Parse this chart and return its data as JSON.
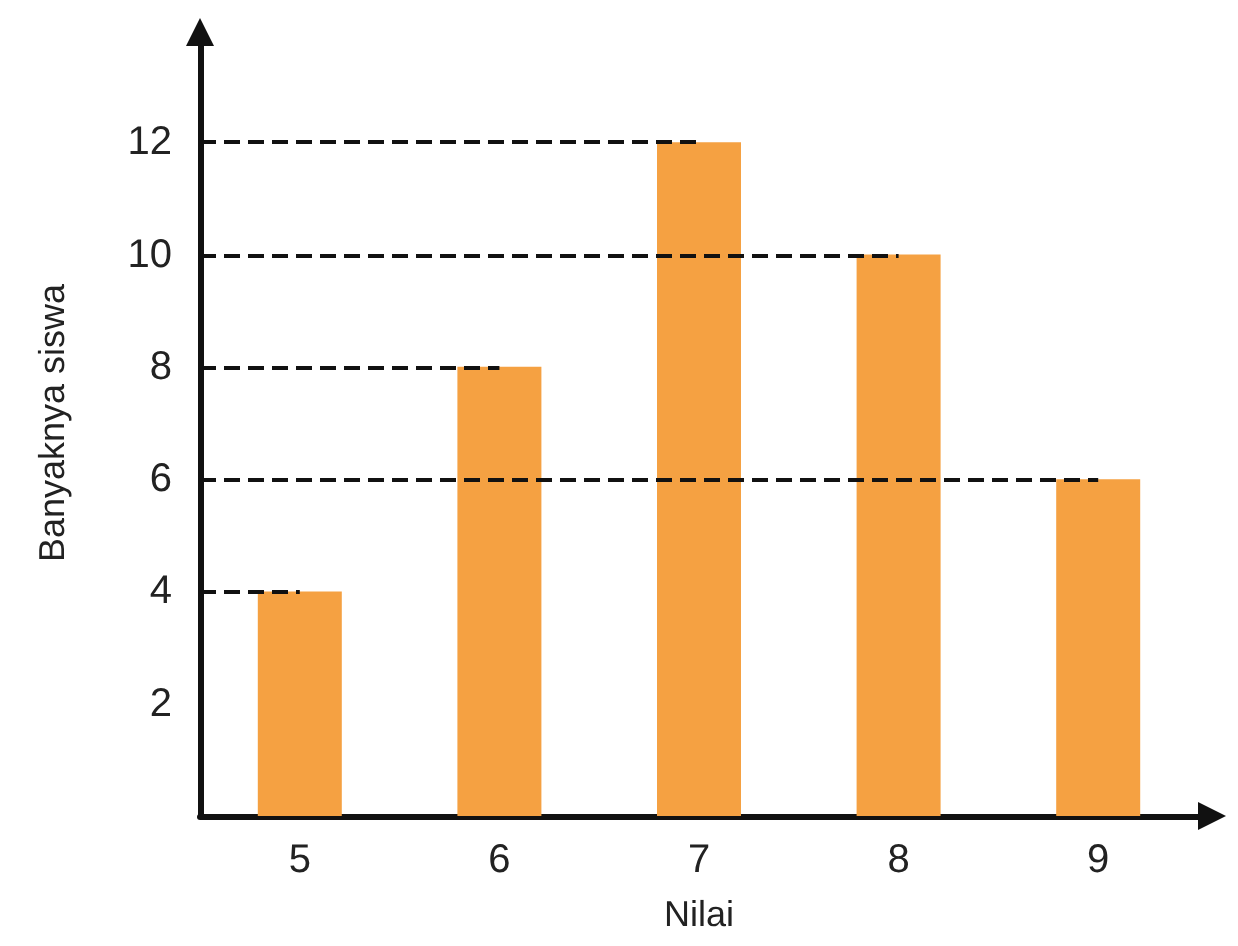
{
  "chart_data": {
    "type": "bar",
    "xlabel": "Nilai",
    "ylabel": "Banyaknya siswa",
    "categories": [
      "5",
      "6",
      "7",
      "8",
      "9"
    ],
    "values": [
      4,
      8,
      12,
      10,
      6
    ],
    "color": "#f5a142",
    "ylim": [
      0,
      14
    ],
    "yticks": [
      2,
      4,
      6,
      8,
      10,
      12
    ],
    "grid": false,
    "ref_lines": [
      {
        "axis": "y",
        "value": 4,
        "color": "#111111",
        "line_style": "dashed"
      },
      {
        "axis": "y",
        "value": 6,
        "color": "#111111",
        "line_style": "dashed"
      },
      {
        "axis": "y",
        "value": 8,
        "color": "#111111",
        "line_style": "dashed"
      },
      {
        "axis": "y",
        "value": 10,
        "color": "#111111",
        "line_style": "dashed"
      },
      {
        "axis": "y",
        "value": 12,
        "color": "#111111",
        "line_style": "dashed"
      }
    ]
  }
}
